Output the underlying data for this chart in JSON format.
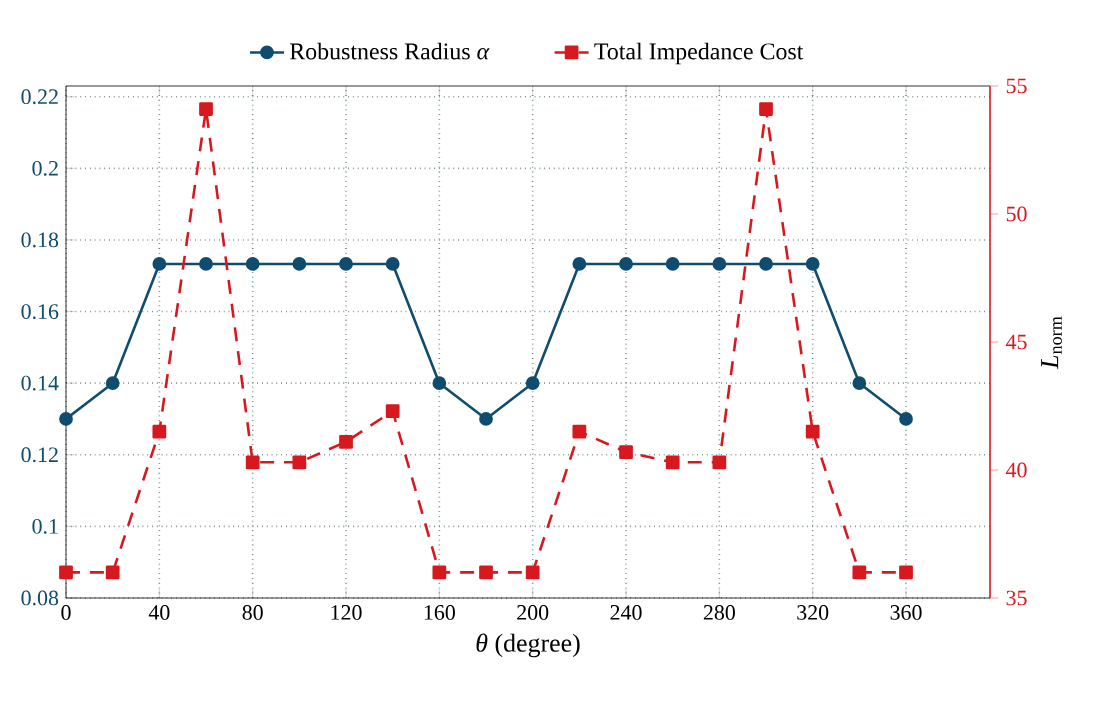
{
  "chart_data": {
    "type": "line",
    "xlabel": "*θ* (degree)",
    "y2label": "*L*$_{norm}$",
    "x": [
      0,
      20,
      40,
      60,
      80,
      100,
      120,
      140,
      160,
      180,
      200,
      220,
      240,
      260,
      280,
      300,
      320,
      340,
      360
    ],
    "xlim": [
      0,
      396
    ],
    "xticks": [
      0,
      40,
      80,
      120,
      160,
      200,
      240,
      280,
      320,
      360
    ],
    "ylim": [
      0.08,
      0.223
    ],
    "yticks": [
      0.08,
      0.1,
      0.12,
      0.14,
      0.16,
      0.18,
      0.2,
      0.22
    ],
    "y2lim": [
      35,
      55
    ],
    "y2ticks": [
      35,
      40,
      45,
      50,
      55
    ],
    "grid": true,
    "legend": "top",
    "series": [
      {
        "name": "Robustness Radius *α*",
        "color": "#0f4c6e",
        "marker": "circle",
        "line_style": "solid",
        "values": [
          0.13,
          0.14,
          0.1733,
          0.1733,
          0.1733,
          0.1733,
          0.1733,
          0.1733,
          0.14,
          0.13,
          0.14,
          0.1733,
          0.1733,
          0.1733,
          0.1733,
          0.1733,
          0.1733,
          0.14,
          0.13
        ]
      },
      {
        "name": "Total Impedance Cost",
        "color": "#d7191f",
        "marker": "square",
        "line_style": "dashed",
        "axis": "y2",
        "values": [
          36,
          36,
          41.5,
          54.1,
          40.3,
          40.3,
          41.1,
          42.3,
          36,
          36,
          36,
          41.5,
          40.7,
          40.3,
          40.3,
          54.1,
          41.5,
          36,
          36
        ]
      }
    ]
  }
}
